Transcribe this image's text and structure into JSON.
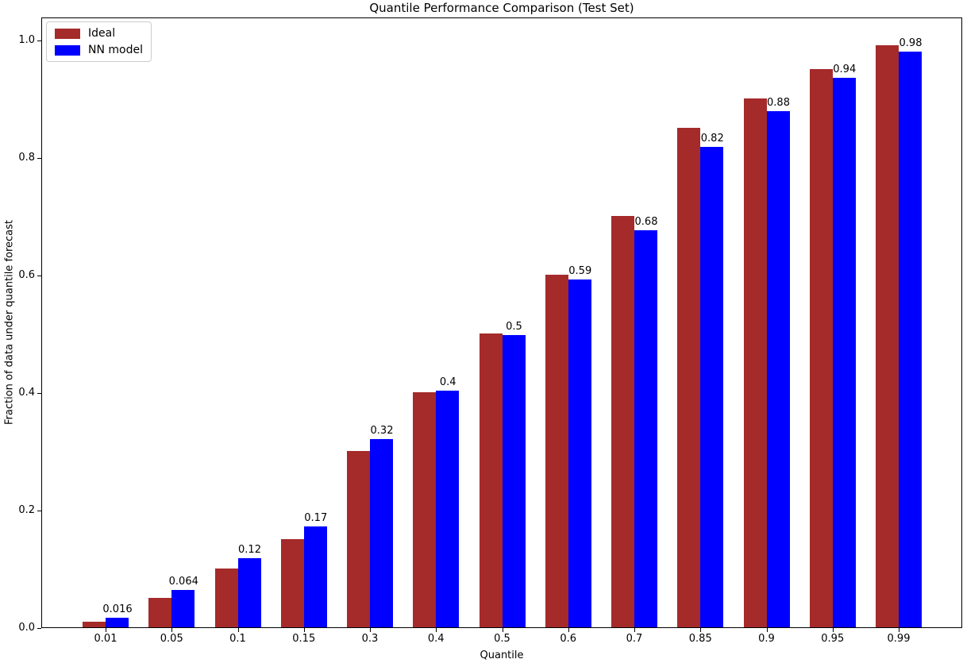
{
  "chart_data": {
    "type": "bar",
    "title": "Quantile Performance Comparison (Test Set)",
    "xlabel": "Quantile",
    "ylabel": "Fraction of data under quantile forecast",
    "categories": [
      "0.01",
      "0.05",
      "0.1",
      "0.15",
      "0.3",
      "0.4",
      "0.5",
      "0.6",
      "0.7",
      "0.85",
      "0.9",
      "0.95",
      "0.99"
    ],
    "series": [
      {
        "name": "Ideal",
        "color": "#A52A2A",
        "values": [
          0.01,
          0.05,
          0.1,
          0.15,
          0.3,
          0.4,
          0.5,
          0.6,
          0.7,
          0.85,
          0.9,
          0.95,
          0.99
        ]
      },
      {
        "name": "NN model",
        "color": "#0000FF",
        "values": [
          0.016,
          0.064,
          0.118,
          0.172,
          0.32,
          0.403,
          0.497,
          0.592,
          0.675,
          0.818,
          0.878,
          0.935,
          0.98
        ],
        "bar_labels": [
          "0.016",
          "0.064",
          "0.12",
          "0.17",
          "0.32",
          "0.4",
          "0.5",
          "0.59",
          "0.68",
          "0.82",
          "0.88",
          "0.94",
          "0.98"
        ]
      }
    ],
    "ylim": [
      0.0,
      1.04
    ],
    "yticks": [
      "0.0",
      "0.2",
      "0.4",
      "0.6",
      "0.8",
      "1.0"
    ],
    "legend_position": "upper left",
    "grid": false,
    "background": "#ffffff",
    "text_color": "#000000"
  }
}
